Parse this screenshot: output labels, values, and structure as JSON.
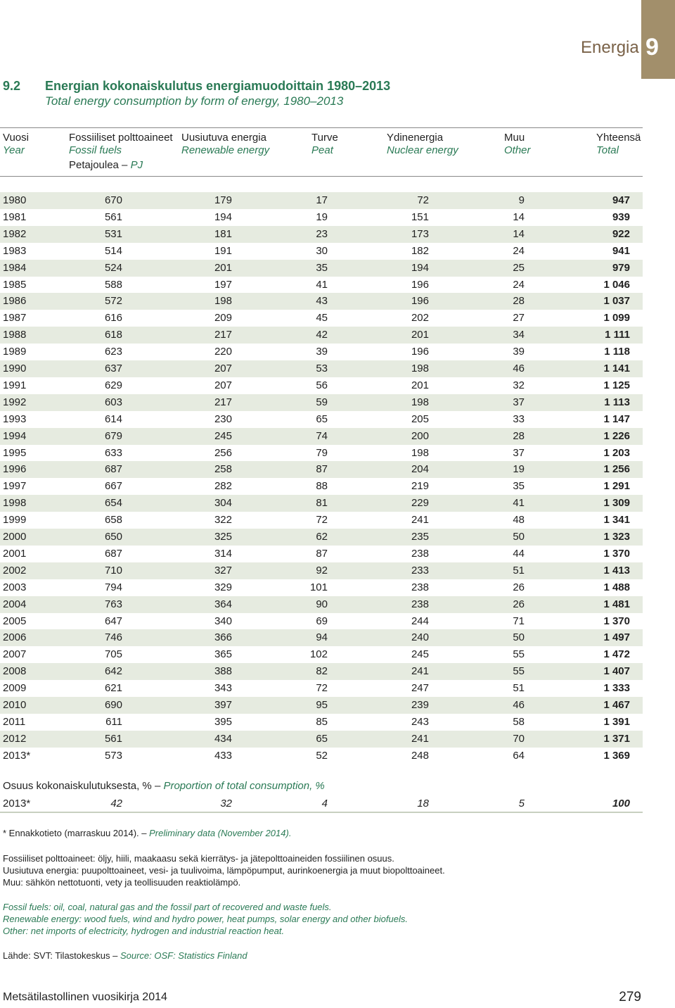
{
  "chapter": {
    "word": "Energia",
    "number": "9"
  },
  "title": {
    "number": "9.2",
    "fi": "Energian kokonaiskulutus energiamuodoittain 1980–2013",
    "en": "Total energy consumption by form of energy, 1980–2013"
  },
  "columns": [
    {
      "fi": "Vuosi",
      "en": "Year"
    },
    {
      "fi": "Fossiiliset polttoaineet",
      "en": "Fossil fuels"
    },
    {
      "fi": "Uusiutuva energia",
      "en": "Renewable energy"
    },
    {
      "fi": "Turve",
      "en": "Peat"
    },
    {
      "fi": "Ydinenergia",
      "en": "Nuclear energy"
    },
    {
      "fi": "Muu",
      "en": "Other"
    },
    {
      "fi": "Yhteensä",
      "en": "Total"
    }
  ],
  "unit": {
    "fi": "Petajoulea –",
    "en": "PJ"
  },
  "rows": [
    [
      "1980",
      "670",
      "179",
      "17",
      "72",
      "9",
      "947"
    ],
    [
      "1981",
      "561",
      "194",
      "19",
      "151",
      "14",
      "939"
    ],
    [
      "1982",
      "531",
      "181",
      "23",
      "173",
      "14",
      "922"
    ],
    [
      "1983",
      "514",
      "191",
      "30",
      "182",
      "24",
      "941"
    ],
    [
      "1984",
      "524",
      "201",
      "35",
      "194",
      "25",
      "979"
    ],
    [
      "1985",
      "588",
      "197",
      "41",
      "196",
      "24",
      "1 046"
    ],
    [
      "1986",
      "572",
      "198",
      "43",
      "196",
      "28",
      "1 037"
    ],
    [
      "1987",
      "616",
      "209",
      "45",
      "202",
      "27",
      "1 099"
    ],
    [
      "1988",
      "618",
      "217",
      "42",
      "201",
      "34",
      "1 111"
    ],
    [
      "1989",
      "623",
      "220",
      "39",
      "196",
      "39",
      "1 118"
    ],
    [
      "1990",
      "637",
      "207",
      "53",
      "198",
      "46",
      "1 141"
    ],
    [
      "1991",
      "629",
      "207",
      "56",
      "201",
      "32",
      "1 125"
    ],
    [
      "1992",
      "603",
      "217",
      "59",
      "198",
      "37",
      "1 113"
    ],
    [
      "1993",
      "614",
      "230",
      "65",
      "205",
      "33",
      "1 147"
    ],
    [
      "1994",
      "679",
      "245",
      "74",
      "200",
      "28",
      "1 226"
    ],
    [
      "1995",
      "633",
      "256",
      "79",
      "198",
      "37",
      "1 203"
    ],
    [
      "1996",
      "687",
      "258",
      "87",
      "204",
      "19",
      "1 256"
    ],
    [
      "1997",
      "667",
      "282",
      "88",
      "219",
      "35",
      "1 291"
    ],
    [
      "1998",
      "654",
      "304",
      "81",
      "229",
      "41",
      "1 309"
    ],
    [
      "1999",
      "658",
      "322",
      "72",
      "241",
      "48",
      "1 341"
    ],
    [
      "2000",
      "650",
      "325",
      "62",
      "235",
      "50",
      "1 323"
    ],
    [
      "2001",
      "687",
      "314",
      "87",
      "238",
      "44",
      "1 370"
    ],
    [
      "2002",
      "710",
      "327",
      "92",
      "233",
      "51",
      "1 413"
    ],
    [
      "2003",
      "794",
      "329",
      "101",
      "238",
      "26",
      "1 488"
    ],
    [
      "2004",
      "763",
      "364",
      "90",
      "238",
      "26",
      "1 481"
    ],
    [
      "2005",
      "647",
      "340",
      "69",
      "244",
      "71",
      "1 370"
    ],
    [
      "2006",
      "746",
      "366",
      "94",
      "240",
      "50",
      "1 497"
    ],
    [
      "2007",
      "705",
      "365",
      "102",
      "245",
      "55",
      "1 472"
    ],
    [
      "2008",
      "642",
      "388",
      "82",
      "241",
      "55",
      "1 407"
    ],
    [
      "2009",
      "621",
      "343",
      "72",
      "247",
      "51",
      "1 333"
    ],
    [
      "2010",
      "690",
      "397",
      "95",
      "239",
      "46",
      "1 467"
    ],
    [
      "2011",
      "611",
      "395",
      "85",
      "243",
      "58",
      "1 391"
    ],
    [
      "2012",
      "561",
      "434",
      "65",
      "241",
      "70",
      "1 371"
    ],
    [
      "2013*",
      "573",
      "433",
      "52",
      "248",
      "64",
      "1 369"
    ]
  ],
  "share": {
    "title_fi": "Osuus kokonaiskulutuksesta, % –",
    "title_en": "Proportion of total consumption, %",
    "row": [
      "2013*",
      "42",
      "32",
      "4",
      "18",
      "5",
      "100"
    ]
  },
  "notes": {
    "prelim_fi": "*   Ennakkotieto (marraskuu 2014). –",
    "prelim_en": "Preliminary data (November 2014).",
    "fi_1": "Fossiiliset polttoaineet: öljy, hiili, maakaasu sekä kierrätys- ja jätepolttoaineiden fossiilinen osuus.",
    "fi_2": "Uusiutuva energia: puupolttoaineet, vesi- ja tuulivoima, lämpöpumput, aurinkoenergia ja muut biopolttoaineet.",
    "fi_3": "Muu: sähkön nettotuonti, vety ja teollisuuden reaktiolämpö.",
    "en_1": "Fossil fuels: oil, coal, natural gas and the fossil part of recovered and waste fuels.",
    "en_2": "Renewable energy: wood fuels, wind and hydro power, heat pumps, solar energy and other biofuels.",
    "en_3": "Other: net imports of electricity, hydrogen and industrial reaction heat.",
    "source_fi": "Lähde: SVT: Tilastokeskus –",
    "source_en": "Source: OSF: Statistics Finland"
  },
  "footer": {
    "left": "Metsätilastollinen vuosikirja 2014",
    "right": "279"
  }
}
